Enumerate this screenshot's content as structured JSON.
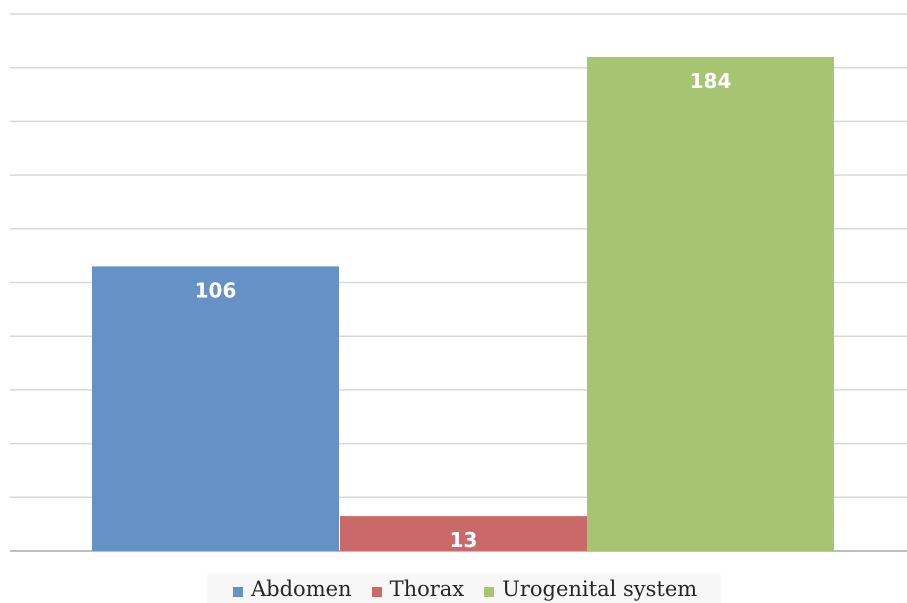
{
  "chart_data": {
    "type": "bar",
    "categories": [
      "Abdomen",
      "Thorax",
      "Urogenital system"
    ],
    "values": [
      106,
      13,
      184
    ],
    "data_labels": [
      "106",
      "13",
      "184"
    ],
    "colors": [
      "#6591c7",
      "#c96a68",
      "#a7c473"
    ],
    "ylim": [
      0,
      200
    ],
    "gridlines": true,
    "gridline_step": 20,
    "legend_position": "bottom",
    "title": "",
    "xlabel": "",
    "ylabel": ""
  },
  "legend": {
    "items": [
      {
        "label": "Abdomen",
        "color": "#6591c7"
      },
      {
        "label": "Thorax",
        "color": "#c96a68"
      },
      {
        "label": "Urogenital system",
        "color": "#a7c473"
      }
    ]
  }
}
